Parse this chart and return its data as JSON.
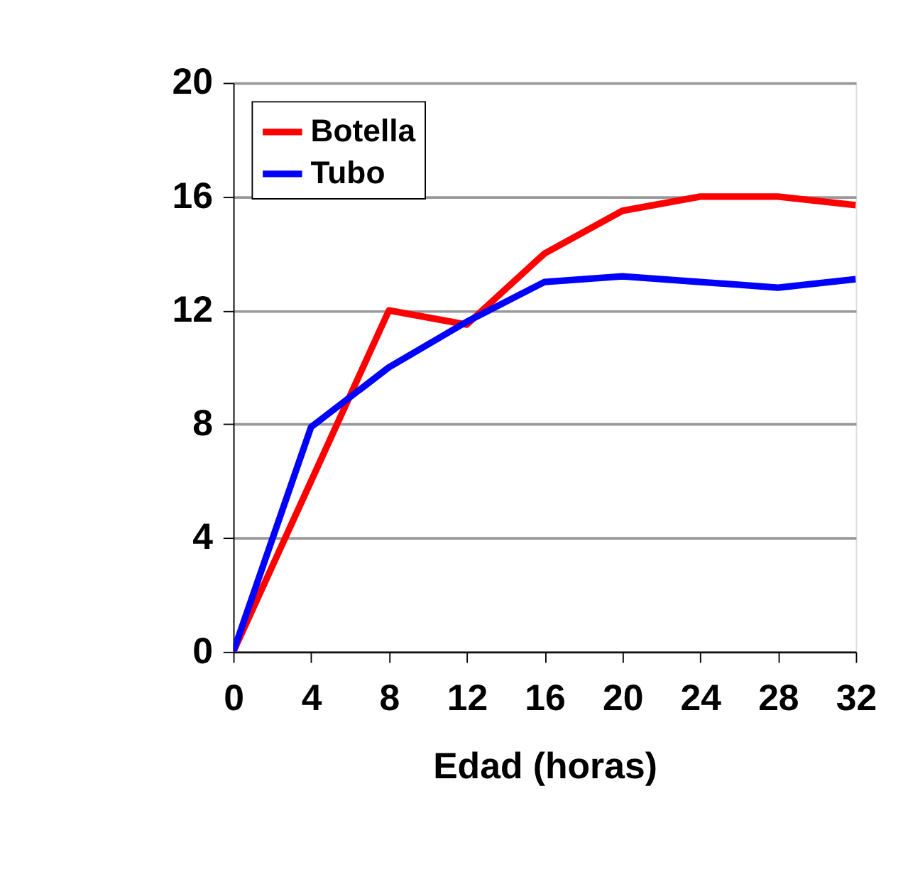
{
  "chart_data": {
    "type": "line",
    "xlabel": "Edad (horas)",
    "x": [
      0,
      4,
      8,
      12,
      16,
      20,
      24,
      28,
      32
    ],
    "series": [
      {
        "name": "Botella",
        "color": "#ff0000",
        "values": [
          0,
          6,
          12,
          11.5,
          14,
          15.5,
          16,
          16,
          15.7
        ]
      },
      {
        "name": "Tubo",
        "color": "#0000ff",
        "values": [
          0,
          7.9,
          10,
          11.6,
          13,
          13.2,
          13,
          12.8,
          13.1
        ]
      }
    ],
    "xlim": [
      0,
      32
    ],
    "xticks": [
      0,
      4,
      8,
      12,
      16,
      20,
      24,
      28,
      32
    ],
    "ylim": [
      0,
      20
    ],
    "yticks": [
      0,
      4,
      8,
      12,
      16,
      20
    ],
    "grid": "y",
    "legend": "top left",
    "marker": "none",
    "line_style": "solid"
  }
}
